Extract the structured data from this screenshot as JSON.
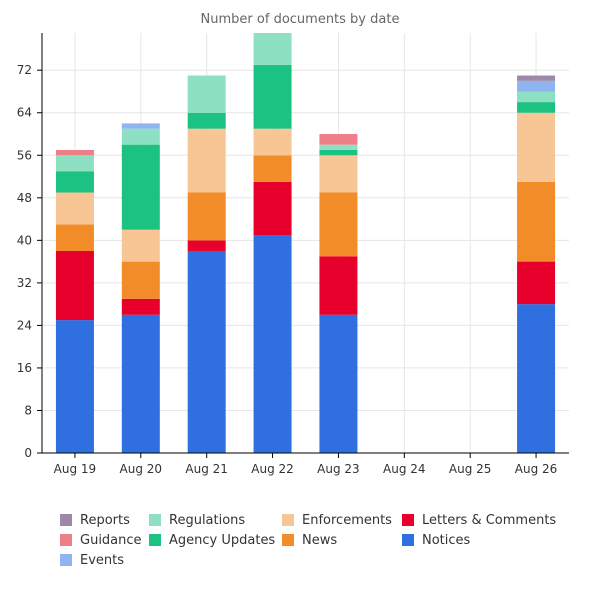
{
  "chart_data": {
    "type": "bar",
    "stacked": true,
    "title": "Number of documents by date",
    "xlabel": "",
    "ylabel": "",
    "ylim": [
      0,
      79
    ],
    "yticks": [
      0,
      8,
      16,
      24,
      32,
      40,
      48,
      56,
      64,
      72
    ],
    "grid": true,
    "legend_position": "bottom",
    "categories": [
      "Aug 19",
      "Aug 20",
      "Aug 21",
      "Aug 22",
      "Aug 23",
      "Aug 24",
      "Aug 25",
      "Aug 26"
    ],
    "series": [
      {
        "name": "Notices",
        "color": "#2f6fe0",
        "values": [
          25,
          26,
          38,
          41,
          26,
          0,
          0,
          28
        ]
      },
      {
        "name": "Letters & Comments",
        "color": "#e6002b",
        "values": [
          13,
          3,
          2,
          10,
          11,
          0,
          0,
          8
        ]
      },
      {
        "name": "News",
        "color": "#f28c28",
        "values": [
          5,
          7,
          9,
          5,
          12,
          0,
          0,
          15
        ]
      },
      {
        "name": "Enforcements",
        "color": "#f8c594",
        "values": [
          6,
          6,
          12,
          5,
          7,
          0,
          0,
          13
        ]
      },
      {
        "name": "Agency Updates",
        "color": "#1cc281",
        "values": [
          4,
          16,
          3,
          12,
          1,
          0,
          0,
          2
        ]
      },
      {
        "name": "Regulations",
        "color": "#8ee0c2",
        "values": [
          3,
          3,
          7,
          6,
          1,
          0,
          0,
          2
        ]
      },
      {
        "name": "Events",
        "color": "#8fb4f0",
        "values": [
          0,
          1,
          0,
          0,
          0,
          0,
          0,
          2
        ]
      },
      {
        "name": "Guidance",
        "color": "#ee7f89",
        "values": [
          1,
          0,
          0,
          0,
          2,
          0,
          0,
          0
        ]
      },
      {
        "name": "Reports",
        "color": "#9e89a8",
        "values": [
          0,
          0,
          0,
          0,
          0,
          0,
          0,
          1
        ]
      }
    ],
    "legend_order": [
      "Reports",
      "Regulations",
      "Enforcements",
      "Letters & Comments",
      "Guidance",
      "Agency Updates",
      "News",
      "Notices",
      "Events"
    ]
  }
}
